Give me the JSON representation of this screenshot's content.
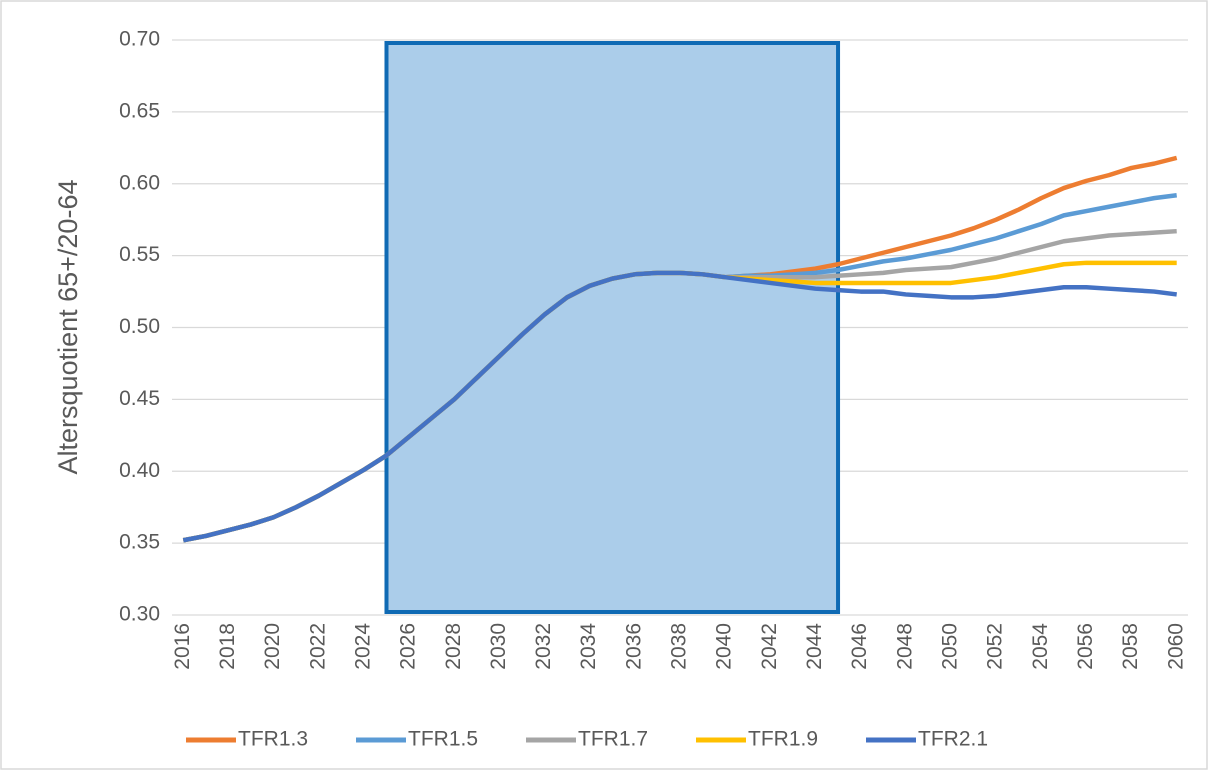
{
  "chart_data": {
    "type": "line",
    "y_axis_label": "Altersquotient 65+/20-64",
    "x": [
      2016,
      2017,
      2018,
      2019,
      2020,
      2021,
      2022,
      2023,
      2024,
      2025,
      2026,
      2027,
      2028,
      2029,
      2030,
      2031,
      2032,
      2033,
      2034,
      2035,
      2036,
      2037,
      2038,
      2039,
      2040,
      2041,
      2042,
      2043,
      2044,
      2045,
      2046,
      2047,
      2048,
      2049,
      2050,
      2051,
      2052,
      2053,
      2054,
      2055,
      2056,
      2057,
      2058,
      2059,
      2060
    ],
    "series": [
      {
        "name": "TFR1.3",
        "color": "#ed7d31",
        "values": [
          0.352,
          0.355,
          0.359,
          0.363,
          0.368,
          0.375,
          0.383,
          0.392,
          0.401,
          0.411,
          0.424,
          0.437,
          0.45,
          0.465,
          0.48,
          0.495,
          0.509,
          0.521,
          0.529,
          0.534,
          0.537,
          0.538,
          0.538,
          0.537,
          0.535,
          0.536,
          0.537,
          0.539,
          0.541,
          0.544,
          0.548,
          0.552,
          0.556,
          0.56,
          0.564,
          0.569,
          0.575,
          0.582,
          0.59,
          0.597,
          0.602,
          0.606,
          0.611,
          0.614,
          0.618
        ]
      },
      {
        "name": "TFR1.5",
        "color": "#5b9bd5",
        "values": [
          0.352,
          0.355,
          0.359,
          0.363,
          0.368,
          0.375,
          0.383,
          0.392,
          0.401,
          0.411,
          0.424,
          0.437,
          0.45,
          0.465,
          0.48,
          0.495,
          0.509,
          0.521,
          0.529,
          0.534,
          0.537,
          0.538,
          0.538,
          0.537,
          0.535,
          0.536,
          0.536,
          0.537,
          0.538,
          0.54,
          0.543,
          0.546,
          0.548,
          0.551,
          0.554,
          0.558,
          0.562,
          0.567,
          0.572,
          0.578,
          0.581,
          0.584,
          0.587,
          0.59,
          0.592
        ]
      },
      {
        "name": "TFR1.7",
        "color": "#a5a5a5",
        "values": [
          0.352,
          0.355,
          0.359,
          0.363,
          0.368,
          0.375,
          0.383,
          0.392,
          0.401,
          0.411,
          0.424,
          0.437,
          0.45,
          0.465,
          0.48,
          0.495,
          0.509,
          0.521,
          0.529,
          0.534,
          0.537,
          0.538,
          0.538,
          0.537,
          0.535,
          0.535,
          0.535,
          0.535,
          0.535,
          0.536,
          0.537,
          0.538,
          0.54,
          0.541,
          0.542,
          0.545,
          0.548,
          0.552,
          0.556,
          0.56,
          0.562,
          0.564,
          0.565,
          0.566,
          0.567
        ]
      },
      {
        "name": "TFR1.9",
        "color": "#ffc000",
        "values": [
          0.352,
          0.355,
          0.359,
          0.363,
          0.368,
          0.375,
          0.383,
          0.392,
          0.401,
          0.411,
          0.424,
          0.437,
          0.45,
          0.465,
          0.48,
          0.495,
          0.509,
          0.521,
          0.529,
          0.534,
          0.537,
          0.538,
          0.538,
          0.537,
          0.535,
          0.534,
          0.533,
          0.532,
          0.531,
          0.531,
          0.531,
          0.531,
          0.531,
          0.531,
          0.531,
          0.533,
          0.535,
          0.538,
          0.541,
          0.544,
          0.545,
          0.545,
          0.545,
          0.545,
          0.545
        ]
      },
      {
        "name": "TFR2.1",
        "color": "#4472c4",
        "values": [
          0.352,
          0.355,
          0.359,
          0.363,
          0.368,
          0.375,
          0.383,
          0.392,
          0.401,
          0.411,
          0.424,
          0.437,
          0.45,
          0.465,
          0.48,
          0.495,
          0.509,
          0.521,
          0.529,
          0.534,
          0.537,
          0.538,
          0.538,
          0.537,
          0.535,
          0.533,
          0.531,
          0.529,
          0.527,
          0.526,
          0.525,
          0.525,
          0.523,
          0.522,
          0.521,
          0.521,
          0.522,
          0.524,
          0.526,
          0.528,
          0.528,
          0.527,
          0.526,
          0.525,
          0.523
        ]
      }
    ],
    "xlim": [
      2015.5,
      2060.5
    ],
    "xticks": [
      2016,
      2018,
      2020,
      2022,
      2024,
      2026,
      2028,
      2030,
      2032,
      2034,
      2036,
      2038,
      2040,
      2042,
      2044,
      2046,
      2048,
      2050,
      2052,
      2054,
      2056,
      2058,
      2060
    ],
    "ylim": [
      0.3,
      0.7
    ],
    "yticks": [
      {
        "value": 0.3,
        "label": "0.30"
      },
      {
        "value": 0.35,
        "label": "0.35"
      },
      {
        "value": 0.4,
        "label": "0.40"
      },
      {
        "value": 0.45,
        "label": "0.45"
      },
      {
        "value": 0.5,
        "label": "0.50"
      },
      {
        "value": 0.55,
        "label": "0.55"
      },
      {
        "value": 0.6,
        "label": "0.60"
      },
      {
        "value": 0.65,
        "label": "0.65"
      },
      {
        "value": 0.7,
        "label": "0.70"
      }
    ],
    "grid": true,
    "legend": "bottom",
    "highlight": {
      "x": [
        2025,
        2045
      ],
      "color": "#abcdea",
      "border": "#0f6ab4"
    }
  }
}
